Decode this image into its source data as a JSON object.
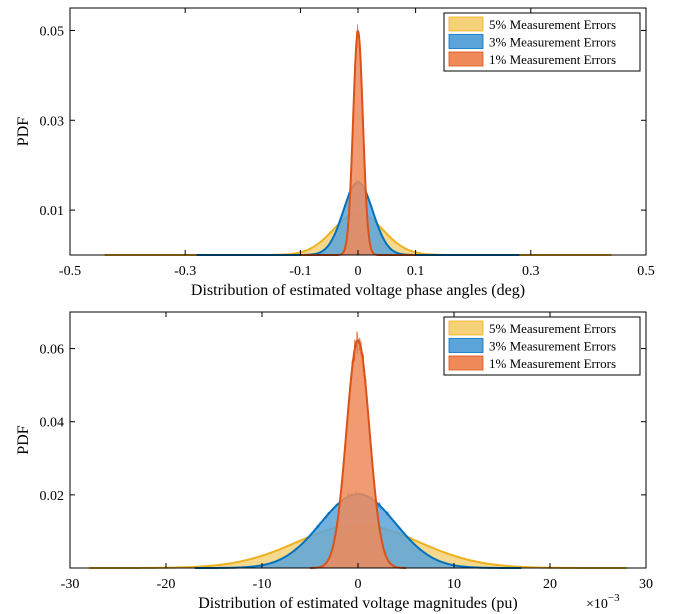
{
  "colors": {
    "yellow_fill": "#F5D27A",
    "yellow_line": "#EDB120",
    "blue_fill": "#5BA4DA",
    "blue_line": "#0072BD",
    "orange_fill": "#F08A5B",
    "orange_line": "#D95319"
  },
  "chart_data": [
    {
      "type": "area",
      "xlabel": "Distribution of estimated voltage phase angles (deg)",
      "ylabel": "PDF",
      "xlim": [
        -0.5,
        0.5
      ],
      "ylim": [
        0,
        0.055
      ],
      "xticks": [
        "-0.5",
        "-0.3",
        "-0.1",
        "0",
        "0.1",
        "0.3",
        "0.5"
      ],
      "xtick_values": [
        -0.5,
        -0.3,
        -0.1,
        0,
        0.1,
        0.3,
        0.5
      ],
      "yticks": [
        "0.01",
        "0.03",
        "0.05"
      ],
      "ytick_values": [
        0.01,
        0.03,
        0.05
      ],
      "x_multiplier": "",
      "legend_position": "top-right",
      "series": [
        {
          "name": "5% Measurement Errors",
          "mean": 0,
          "sd": 0.0425,
          "peak": 0.0094,
          "span": 0.44
        },
        {
          "name": "3% Measurement Errors",
          "mean": 0,
          "sd": 0.0255,
          "peak": 0.0162,
          "span": 0.28
        },
        {
          "name": "1% Measurement Errors",
          "mean": 0,
          "sd": 0.0085,
          "peak": 0.0498,
          "span": 0.1
        }
      ]
    },
    {
      "type": "area",
      "xlabel": "Distribution of estimated voltage magnitudes (pu)",
      "ylabel": "PDF",
      "xlim": [
        -30,
        30
      ],
      "ylim": [
        0,
        0.07
      ],
      "xticks": [
        "-30",
        "-20",
        "-10",
        "0",
        "10",
        "20",
        "30"
      ],
      "xtick_values": [
        -30,
        -20,
        -10,
        0,
        10,
        20,
        30
      ],
      "yticks": [
        "0.02",
        "0.04",
        "0.06"
      ],
      "ytick_values": [
        0.02,
        0.04,
        0.06
      ],
      "x_multiplier": "×10",
      "x_multiplier_exp": "−3",
      "legend_position": "top-right",
      "series": [
        {
          "name": "5% Measurement Errors",
          "mean": 0,
          "sd": 6.3,
          "peak": 0.0118,
          "span": 28
        },
        {
          "name": "3% Measurement Errors",
          "mean": 0,
          "sd": 3.9,
          "peak": 0.0202,
          "span": 17
        },
        {
          "name": "1% Measurement Errors",
          "mean": 0,
          "sd": 1.2,
          "peak": 0.0622,
          "span": 5
        }
      ]
    }
  ]
}
